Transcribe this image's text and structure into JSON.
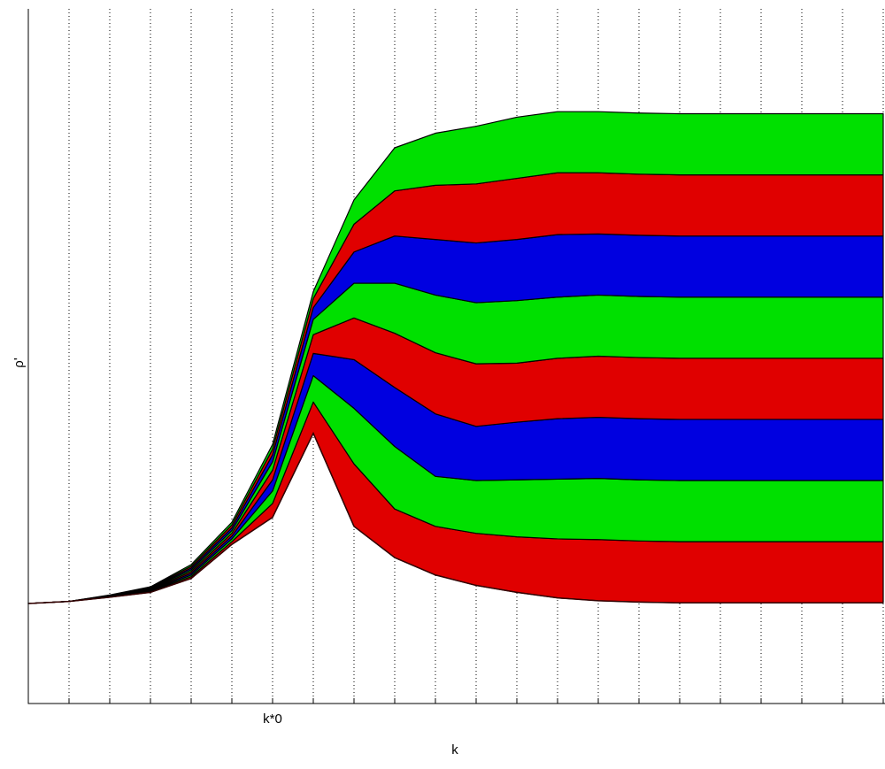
{
  "chart_data": {
    "type": "stacked-area",
    "xlabel": "k",
    "ylabel": "ρ'",
    "categories": [
      null,
      null,
      null,
      null,
      null,
      null,
      "k*0",
      null,
      null,
      null,
      null,
      null,
      null,
      null,
      null,
      null,
      null,
      null,
      null,
      null,
      null,
      null
    ],
    "ylim": [
      0,
      1
    ],
    "grid": true,
    "baseline": [
      0.144,
      0.147,
      0.153,
      0.16,
      0.18,
      0.229,
      0.268,
      0.389,
      0.255,
      0.21,
      0.185,
      0.17,
      0.16,
      0.152,
      0.148,
      0.146,
      0.145,
      0.145,
      0.145,
      0.145,
      0.145,
      0.145
    ],
    "series": [
      {
        "color": "#e00000",
        "values": [
          0,
          0,
          0.0004,
          0.001,
          0.0025,
          0.004,
          0.02,
          0.045,
          0.09,
          0.07,
          0.07,
          0.075,
          0.08,
          0.085,
          0.088,
          0.088,
          0.088,
          0.088,
          0.088,
          0.088,
          0.088,
          0.088
        ]
      },
      {
        "color": "#00e000",
        "values": [
          0,
          0,
          0.0004,
          0.001,
          0.0025,
          0.004,
          0.018,
          0.038,
          0.08,
          0.09,
          0.072,
          0.076,
          0.082,
          0.086,
          0.088,
          0.088,
          0.088,
          0.088,
          0.088,
          0.088,
          0.088,
          0.088
        ]
      },
      {
        "color": "#0000e0",
        "values": [
          0,
          0,
          0.0004,
          0.001,
          0.0025,
          0.004,
          0.016,
          0.032,
          0.07,
          0.085,
          0.09,
          0.078,
          0.083,
          0.087,
          0.088,
          0.088,
          0.088,
          0.088,
          0.088,
          0.088,
          0.088,
          0.088
        ]
      },
      {
        "color": "#e00000",
        "values": [
          0,
          0,
          0.0004,
          0.001,
          0.0025,
          0.004,
          0.014,
          0.027,
          0.06,
          0.078,
          0.088,
          0.09,
          0.085,
          0.087,
          0.088,
          0.088,
          0.088,
          0.088,
          0.088,
          0.088,
          0.088,
          0.088
        ]
      },
      {
        "color": "#00e000",
        "values": [
          0,
          0,
          0.0004,
          0.001,
          0.0025,
          0.004,
          0.012,
          0.022,
          0.05,
          0.072,
          0.083,
          0.088,
          0.09,
          0.088,
          0.088,
          0.088,
          0.088,
          0.088,
          0.088,
          0.088,
          0.088,
          0.088
        ]
      },
      {
        "color": "#0000e0",
        "values": [
          0,
          0,
          0.0004,
          0.001,
          0.0025,
          0.004,
          0.01,
          0.017,
          0.045,
          0.068,
          0.08,
          0.086,
          0.088,
          0.09,
          0.088,
          0.088,
          0.088,
          0.088,
          0.088,
          0.088,
          0.088,
          0.088
        ]
      },
      {
        "color": "#e00000",
        "values": [
          0,
          0,
          0.0004,
          0.001,
          0.0025,
          0.004,
          0.008,
          0.013,
          0.04,
          0.065,
          0.078,
          0.085,
          0.088,
          0.089,
          0.088,
          0.088,
          0.088,
          0.088,
          0.088,
          0.088,
          0.088,
          0.088
        ]
      },
      {
        "color": "#00e000",
        "values": [
          0,
          0,
          0.0004,
          0.001,
          0.0025,
          0.004,
          0.007,
          0.01,
          0.035,
          0.062,
          0.075,
          0.083,
          0.088,
          0.088,
          0.088,
          0.088,
          0.088,
          0.088,
          0.088,
          0.088,
          0.088,
          0.088
        ]
      }
    ]
  }
}
